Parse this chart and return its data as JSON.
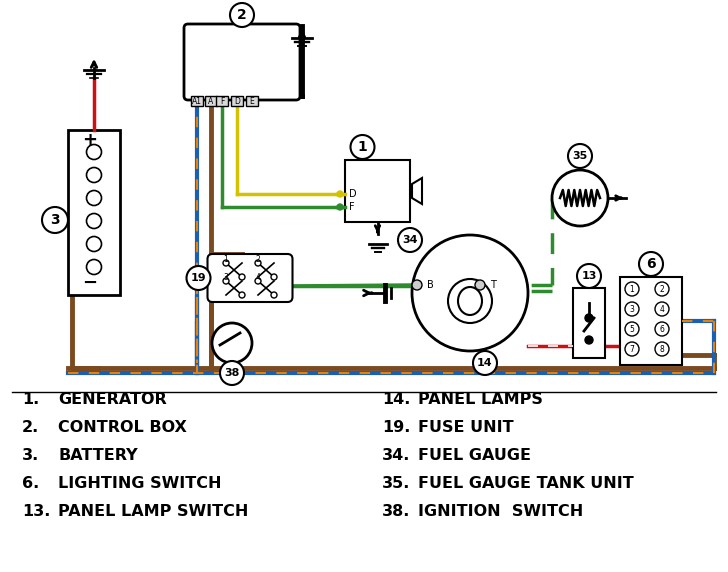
{
  "bg_color": "#ffffff",
  "legend_items_left": [
    {
      "num": "1.",
      "text": "GENERATOR"
    },
    {
      "num": "2.",
      "text": "CONTROL BOX"
    },
    {
      "num": "3.",
      "text": "BATTERY"
    },
    {
      "num": "6.",
      "text": "LIGHTING SWITCH"
    },
    {
      "num": "13.",
      "text": "PANEL LAMP SWITCH"
    }
  ],
  "legend_items_right": [
    {
      "num": "14.",
      "text": "PANEL LAMPS"
    },
    {
      "num": "19.",
      "text": "FUSE UNIT"
    },
    {
      "num": "34.",
      "text": "FUEL GAUGE"
    },
    {
      "num": "35.",
      "text": "FUEL GAUGE TANK UNIT"
    },
    {
      "num": "38.",
      "text": "IGNITION  SWITCH"
    }
  ],
  "brown": "#7B4A1E",
  "blue": "#1a5fb4",
  "orange": "#e6820a",
  "green": "#2e8b2e",
  "yellow": "#d4c200",
  "red": "#cc1111",
  "black": "#000000"
}
